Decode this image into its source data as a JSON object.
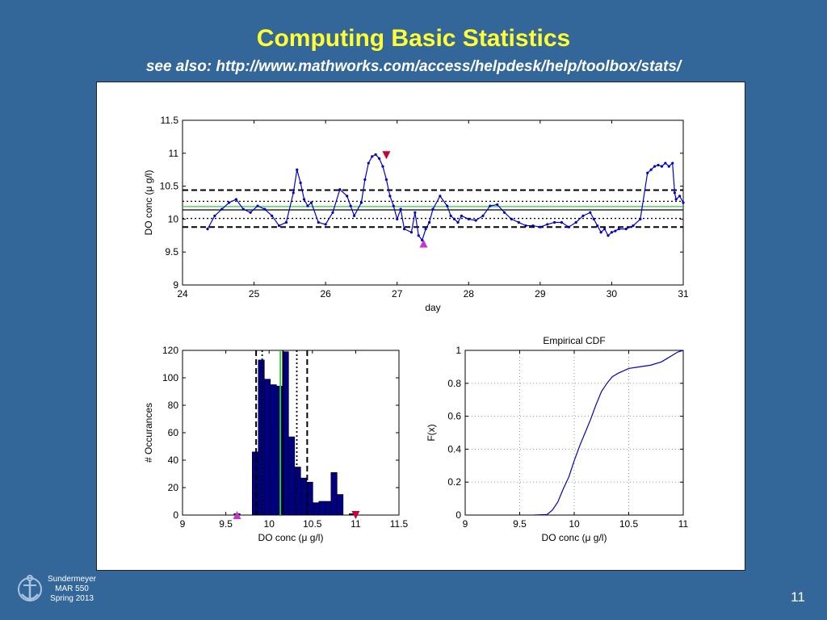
{
  "slide": {
    "title": "Computing Basic Statistics",
    "subtitle": "see also: http://www.mathworks.com/access/helpdesk/help/toolbox/stats/",
    "credit": [
      "Sundermeyer",
      "MAR 550",
      "Spring 2013"
    ],
    "page_number": "11",
    "colors": {
      "background": "#336699",
      "title": "#FFFF33",
      "text": "#FFFFFF"
    },
    "logo_icon": "anchor-seal-icon"
  },
  "chart_data": [
    {
      "type": "line",
      "title": "",
      "xlabel": "day",
      "ylabel": "DO conc (μ g/l)",
      "xlim": [
        24,
        31
      ],
      "ylim": [
        9,
        11.5
      ],
      "xticks": [
        24,
        25,
        26,
        27,
        28,
        29,
        30,
        31
      ],
      "yticks": [
        9,
        9.5,
        10,
        10.5,
        11,
        11.5
      ],
      "ytick_labels": [
        "9",
        "9.5",
        "10",
        "10.5",
        "11",
        "11.5"
      ],
      "series": [
        {
          "color": "#0000CC",
          "marker": "dot",
          "x": [
            24.35,
            24.45,
            24.55,
            24.65,
            24.75,
            24.85,
            24.95,
            25.05,
            25.15,
            25.25,
            25.35,
            25.45,
            25.55,
            25.6,
            25.65,
            25.7,
            25.75,
            25.8,
            25.9,
            26.0,
            26.1,
            26.2,
            26.3,
            26.35,
            26.4,
            26.5,
            26.55,
            26.6,
            26.65,
            26.7,
            26.75,
            26.8,
            26.85,
            26.9,
            26.95,
            27.0,
            27.05,
            27.1,
            27.2,
            27.25,
            27.3,
            27.35,
            27.4,
            27.45,
            27.5,
            27.6,
            27.7,
            27.75,
            27.8,
            27.85,
            27.9,
            28.0,
            28.1,
            28.2,
            28.3,
            28.4,
            28.5,
            28.6,
            28.7,
            28.8,
            28.9,
            29.0,
            29.1,
            29.2,
            29.3,
            29.4,
            29.5,
            29.6,
            29.7,
            29.75,
            29.8,
            29.85,
            29.9,
            29.95,
            30.0,
            30.05,
            30.1,
            30.2,
            30.3,
            30.4,
            30.5,
            30.55,
            30.6,
            30.65,
            30.7,
            30.75,
            30.8,
            30.85,
            30.88,
            30.9,
            30.95,
            31.0
          ],
          "y": [
            9.85,
            10.05,
            10.15,
            10.25,
            10.3,
            10.15,
            10.1,
            10.2,
            10.15,
            10.05,
            9.9,
            9.95,
            10.4,
            10.75,
            10.55,
            10.3,
            10.2,
            10.25,
            9.95,
            9.92,
            10.1,
            10.45,
            10.35,
            10.2,
            10.05,
            10.25,
            10.6,
            10.85,
            10.95,
            10.98,
            10.92,
            10.8,
            10.6,
            10.35,
            10.2,
            10.0,
            10.15,
            9.85,
            9.8,
            10.1,
            9.75,
            9.68,
            9.85,
            9.95,
            10.15,
            10.35,
            10.2,
            10.05,
            10.0,
            9.95,
            10.05,
            10.0,
            9.98,
            10.05,
            10.2,
            10.22,
            10.1,
            10.0,
            9.95,
            9.9,
            9.9,
            9.88,
            9.92,
            9.95,
            9.95,
            9.88,
            9.95,
            10.05,
            10.1,
            10.0,
            9.9,
            9.8,
            9.85,
            9.75,
            9.8,
            9.82,
            9.85,
            9.85,
            9.9,
            10.0,
            10.7,
            10.75,
            10.8,
            10.82,
            10.8,
            10.85,
            10.8,
            10.85,
            10.4,
            10.3,
            10.35,
            10.25
          ]
        }
      ],
      "hlines": [
        {
          "y": 10.14,
          "style": "solid",
          "color": "#000000"
        },
        {
          "y": 10.19,
          "style": "solid",
          "color": "#33CC33"
        },
        {
          "y": 10.27,
          "style": "dotted",
          "color": "#000000"
        },
        {
          "y": 10.01,
          "style": "dotted",
          "color": "#000000"
        },
        {
          "y": 10.44,
          "style": "dashed",
          "color": "#000000"
        },
        {
          "y": 9.88,
          "style": "dashed",
          "color": "#000000"
        }
      ],
      "markers": [
        {
          "x": 26.85,
          "y": 10.97,
          "shape": "triangle-down",
          "color": "#CC0033"
        },
        {
          "x": 27.37,
          "y": 9.63,
          "shape": "triangle-up",
          "color": "#CC33CC"
        }
      ]
    },
    {
      "type": "bar",
      "title": "",
      "xlabel": "DO conc (μ g/l)",
      "ylabel": "# Occurances",
      "xlim": [
        9,
        11.5
      ],
      "ylim": [
        0,
        120
      ],
      "xticks": [
        9,
        9.5,
        10,
        10.5,
        11,
        11.5
      ],
      "yticks": [
        0,
        20,
        40,
        60,
        80,
        100,
        120
      ],
      "bin_width": 0.07,
      "bar_color": "#000080",
      "bins": [
        9.63,
        9.7,
        9.77,
        9.84,
        9.91,
        9.98,
        10.05,
        10.12,
        10.19,
        10.26,
        10.33,
        10.4,
        10.47,
        10.54,
        10.61,
        10.68,
        10.75,
        10.82,
        10.89,
        10.96
      ],
      "values": [
        1,
        0,
        0,
        46,
        113,
        99,
        95,
        94,
        119,
        57,
        35,
        27,
        24,
        9,
        10,
        10,
        31,
        15,
        0,
        1
      ],
      "vlines": [
        {
          "x": 10.13,
          "style": "solid",
          "color": "#33CC33"
        },
        {
          "x": 10.16,
          "style": "solid",
          "color": "#000000"
        },
        {
          "x": 9.92,
          "style": "dotted",
          "color": "#000000"
        },
        {
          "x": 10.32,
          "style": "dotted",
          "color": "#000000"
        },
        {
          "x": 9.85,
          "style": "dashed",
          "color": "#000000"
        },
        {
          "x": 10.44,
          "style": "dashed",
          "color": "#000000"
        }
      ],
      "markers": [
        {
          "x": 9.63,
          "y": 0,
          "shape": "triangle-up",
          "color": "#CC33CC"
        },
        {
          "x": 11.0,
          "y": 0,
          "shape": "triangle-down",
          "color": "#CC0033"
        }
      ]
    },
    {
      "type": "line",
      "title": "Empirical CDF",
      "xlabel": "DO conc (μ g/l)",
      "ylabel": "F(x)",
      "xlim": [
        9,
        11
      ],
      "ylim": [
        0,
        1
      ],
      "xticks": [
        9,
        9.5,
        10,
        10.5,
        11
      ],
      "yticks": [
        0,
        0.2,
        0.4,
        0.6,
        0.8,
        1
      ],
      "ytick_labels": [
        "0",
        "0.2",
        "0.4",
        "0.6",
        "0.8",
        "1"
      ],
      "grid": true,
      "series": [
        {
          "color": "#0000CC",
          "x": [
            9.63,
            9.75,
            9.8,
            9.85,
            9.9,
            9.95,
            10.0,
            10.05,
            10.1,
            10.15,
            10.2,
            10.25,
            10.3,
            10.35,
            10.4,
            10.5,
            10.6,
            10.7,
            10.8,
            10.85,
            10.9,
            10.95,
            11.0
          ],
          "y": [
            0.0,
            0.003,
            0.03,
            0.08,
            0.16,
            0.23,
            0.33,
            0.42,
            0.5,
            0.58,
            0.67,
            0.75,
            0.8,
            0.84,
            0.86,
            0.89,
            0.9,
            0.91,
            0.93,
            0.95,
            0.97,
            0.99,
            1.0
          ]
        }
      ]
    }
  ]
}
